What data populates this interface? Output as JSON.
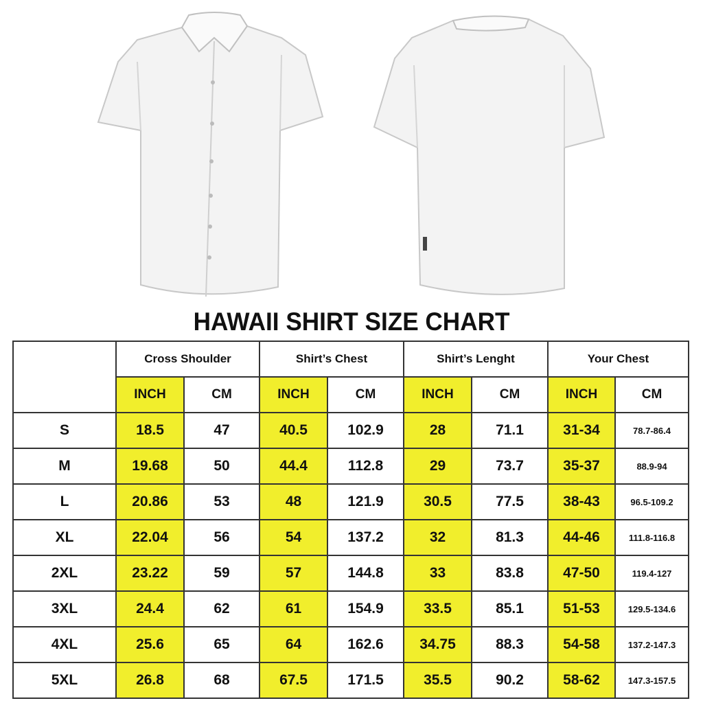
{
  "title": "HAWAII SHIRT SIZE CHART",
  "colors": {
    "highlight": "#f1ee2c",
    "border": "#333333",
    "shirt": "#f2f2f2"
  },
  "images": [
    "shirt-front",
    "shirt-back"
  ],
  "groups": [
    "Cross Shoulder",
    "Shirt’s Chest",
    "Shirt’s Lenght",
    "Your Chest"
  ],
  "units": [
    "INCH",
    "CM",
    "INCH",
    "CM",
    "INCH",
    "CM",
    "INCH",
    "CM"
  ],
  "rows": [
    {
      "size": "S",
      "values": [
        "18.5",
        "47",
        "40.5",
        "102.9",
        "28",
        "71.1",
        "31-34",
        "78.7-86.4"
      ]
    },
    {
      "size": "M",
      "values": [
        "19.68",
        "50",
        "44.4",
        "112.8",
        "29",
        "73.7",
        "35-37",
        "88.9-94"
      ]
    },
    {
      "size": "L",
      "values": [
        "20.86",
        "53",
        "48",
        "121.9",
        "30.5",
        "77.5",
        "38-43",
        "96.5-109.2"
      ]
    },
    {
      "size": "XL",
      "values": [
        "22.04",
        "56",
        "54",
        "137.2",
        "32",
        "81.3",
        "44-46",
        "111.8-116.8"
      ]
    },
    {
      "size": "2XL",
      "values": [
        "23.22",
        "59",
        "57",
        "144.8",
        "33",
        "83.8",
        "47-50",
        "119.4-127"
      ]
    },
    {
      "size": "3XL",
      "values": [
        "24.4",
        "62",
        "61",
        "154.9",
        "33.5",
        "85.1",
        "51-53",
        "129.5-134.6"
      ]
    },
    {
      "size": "4XL",
      "values": [
        "25.6",
        "65",
        "64",
        "162.6",
        "34.75",
        "88.3",
        "54-58",
        "137.2-147.3"
      ]
    },
    {
      "size": "5XL",
      "values": [
        "26.8",
        "68",
        "67.5",
        "171.5",
        "35.5",
        "90.2",
        "58-62",
        "147.3-157.5"
      ]
    }
  ]
}
